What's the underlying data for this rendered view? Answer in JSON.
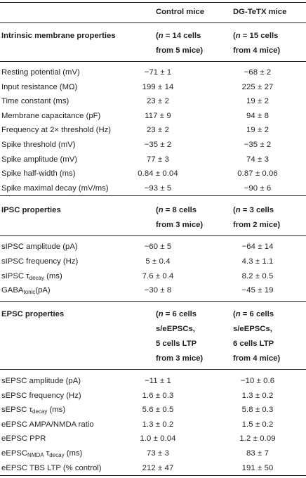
{
  "header": {
    "col1": "",
    "col2": "Control mice",
    "col3": "DG-TeTX mice"
  },
  "sections": [
    {
      "title": "Intrinsic membrane properties",
      "n_control": [
        "(n = 14 cells",
        "from 5 mice)"
      ],
      "n_tetx": [
        "(n = 15 cells",
        "from 4 mice)"
      ],
      "rows": [
        {
          "label": "Resting potential (mV)",
          "control": "−71 ± 1",
          "tetx": "−68 ± 2"
        },
        {
          "label": "Input resistance (MΩ)",
          "control": "199 ± 14",
          "tetx": "225 ± 27"
        },
        {
          "label": "Time constant (ms)",
          "control": "23 ± 2",
          "tetx": "19 ± 2"
        },
        {
          "label": "Membrane capacitance (pF)",
          "control": "117 ± 9",
          "tetx": "94 ± 8"
        },
        {
          "label": "Frequency at 2× threshold (Hz)",
          "control": "23 ± 2",
          "tetx": "19 ± 2"
        },
        {
          "label": "Spike threshold (mV)",
          "control": "−35 ± 2",
          "tetx": "−35 ± 2"
        },
        {
          "label": "Spike amplitude (mV)",
          "control": "77 ± 3",
          "tetx": "74 ± 3"
        },
        {
          "label": "Spike half-width (ms)",
          "control": "0.84 ± 0.04",
          "tetx": "0.87 ± 0.06"
        },
        {
          "label": "Spike maximal decay (mV/ms)",
          "control": "−93 ± 5",
          "tetx": "−90 ± 6"
        }
      ]
    },
    {
      "title": "IPSC properties",
      "n_control": [
        "(n = 8 cells",
        "from 3 mice)"
      ],
      "n_tetx": [
        "(n = 3 cells",
        "from 2 mice)"
      ],
      "rows": [
        {
          "label": "sIPSC amplitude (pA)",
          "control": "−60 ± 5",
          "tetx": "−64 ± 14"
        },
        {
          "label": "sIPSC frequency (Hz)",
          "control": "5 ± 0.4",
          "tetx": "4.3 ± 1.1"
        },
        {
          "label_main": "sIPSC τ",
          "label_sub": "decay",
          "label_tail": " (ms)",
          "control": "7.6 ± 0.4",
          "tetx": "8.2 ± 0.5"
        },
        {
          "label_main": "GABA",
          "label_sub": "tonic",
          "label_tail": "(pA)",
          "control": "−30 ± 8",
          "tetx": "−45 ± 19"
        }
      ]
    },
    {
      "title": "EPSC properties",
      "n_control": [
        "(n = 6 cells",
        "s/eEPSCs,",
        "5 cells LTP",
        "from 3 mice)"
      ],
      "n_tetx": [
        "(n = 6 cells",
        "s/eEPSCs,",
        "6 cells LTP",
        "from 4 mice)"
      ],
      "rows": [
        {
          "label": "sEPSC amplitude (pA)",
          "control": "−11 ± 1",
          "tetx": "−10 ± 0.6"
        },
        {
          "label": "sEPSC frequency (Hz)",
          "control": "1.6 ± 0.3",
          "tetx": "1.3 ± 0.2"
        },
        {
          "label_main": "sEPSC τ",
          "label_sub": "decay",
          "label_tail": " (ms)",
          "control": "5.6 ± 0.5",
          "tetx": "5.8 ± 0.3"
        },
        {
          "label": "eEPSC AMPA/NMDA ratio",
          "control": "1.3 ± 0.2",
          "tetx": "1.5 ± 0.2"
        },
        {
          "label": "eEPSC PPR",
          "control": "1.0 ± 0.04",
          "tetx": "1.2 ± 0.09"
        },
        {
          "label_main": "eEPSC",
          "label_sub": "NMDA",
          "label_mid": " τ",
          "label_sub2": "decay",
          "label_tail": " (ms)",
          "control": "73 ± 3",
          "tetx": "83 ± 7"
        },
        {
          "label": "eEPSC TBS LTP (% control)",
          "control": "212 ± 47",
          "tetx": "191 ± 50"
        }
      ]
    }
  ]
}
